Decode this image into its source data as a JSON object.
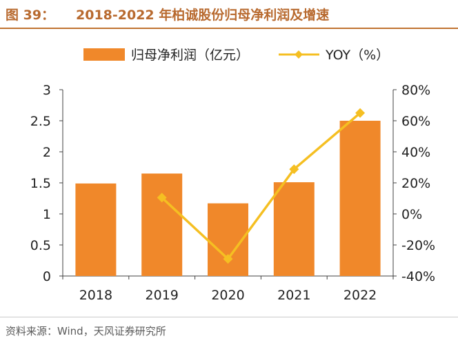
{
  "header": {
    "figure_label": "图 39：",
    "title": "2018-2022 年柏诚股份归母净利润及增速"
  },
  "footer": {
    "source": "资料来源：Wind，天风证券研究所"
  },
  "colors": {
    "bar": "#f0882a",
    "line": "#f5bf22",
    "axis": "#404040",
    "title": "#b86a2f"
  },
  "chart_data": {
    "type": "bar",
    "categories": [
      "2018",
      "2019",
      "2020",
      "2021",
      "2022"
    ],
    "series": [
      {
        "name": "归母净利润（亿元）",
        "type": "bar",
        "axis": "left",
        "values": [
          1.49,
          1.65,
          1.17,
          1.51,
          2.5
        ]
      },
      {
        "name": "YOY（%）",
        "type": "line",
        "axis": "right",
        "values": [
          null,
          10.5,
          -29.0,
          28.8,
          65.0
        ]
      }
    ],
    "y_left": {
      "min": 0,
      "max": 3,
      "ticks": [
        "0",
        "0.5",
        "1",
        "1.5",
        "2",
        "2.5",
        "3"
      ]
    },
    "y_right": {
      "min": -40,
      "max": 80,
      "ticks": [
        "-40%",
        "-20%",
        "0%",
        "20%",
        "40%",
        "60%",
        "80%"
      ]
    },
    "legend": {
      "placement": "top-center",
      "bar_label": "归母净利润（亿元）",
      "line_label": "YOY（%）"
    },
    "grid": false
  }
}
